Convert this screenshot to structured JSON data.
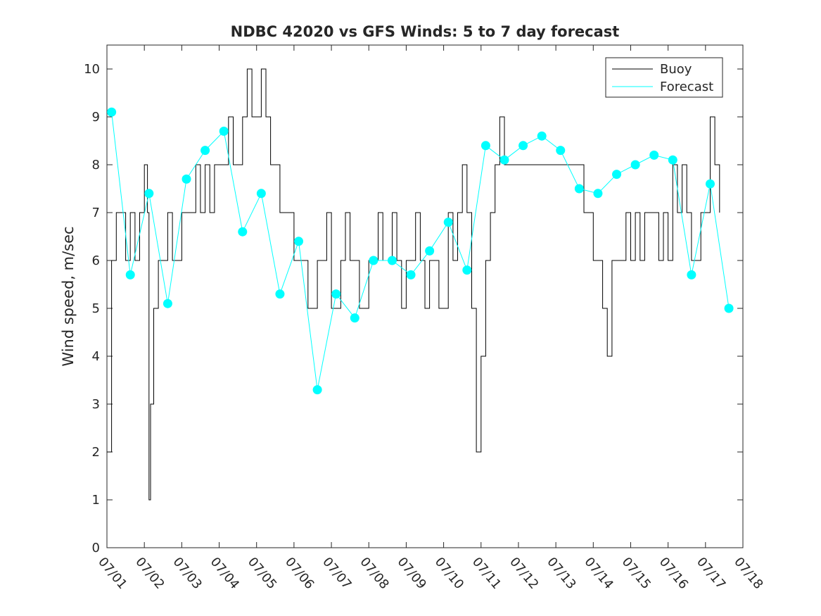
{
  "chart_data": {
    "type": "line",
    "title": "NDBC 42020 vs GFS Winds: 5 to 7 day forecast",
    "xlabel": "",
    "ylabel": "Wind speed, m/sec",
    "xlim": [
      "07/01",
      "07/18"
    ],
    "ylim": [
      0,
      10.5
    ],
    "x_ticks": [
      "07/01",
      "07/02",
      "07/03",
      "07/04",
      "07/05",
      "07/06",
      "07/07",
      "07/08",
      "07/09",
      "07/10",
      "07/11",
      "07/12",
      "07/13",
      "07/14",
      "07/15",
      "07/16",
      "07/17",
      "07/18"
    ],
    "y_ticks": [
      0,
      1,
      2,
      3,
      4,
      5,
      6,
      7,
      8,
      9,
      10
    ],
    "grid": false,
    "legend": {
      "placement": "top-right",
      "entries": [
        "Buoy",
        "Forecast"
      ]
    },
    "colors": {
      "buoy": "#000000",
      "forecast": "#00ffff",
      "axis": "#262626"
    },
    "series": [
      {
        "name": "Buoy",
        "x": [
          "07/01 00:00",
          "07/01 03:00",
          "07/01 06:00",
          "07/01 09:00",
          "07/01 12:00",
          "07/01 15:00",
          "07/01 18:00",
          "07/01 21:00",
          "07/02 00:00",
          "07/02 02:00",
          "07/02 03:00",
          "07/02 04:00",
          "07/02 06:00",
          "07/02 09:00",
          "07/02 12:00",
          "07/02 15:00",
          "07/02 18:00",
          "07/02 21:00",
          "07/03 00:00",
          "07/03 03:00",
          "07/03 06:00",
          "07/03 09:00",
          "07/03 12:00",
          "07/03 15:00",
          "07/03 18:00",
          "07/03 21:00",
          "07/04 00:00",
          "07/04 03:00",
          "07/04 06:00",
          "07/04 09:00",
          "07/04 12:00",
          "07/04 15:00",
          "07/04 18:00",
          "07/04 21:00",
          "07/05 00:00",
          "07/05 03:00",
          "07/05 06:00",
          "07/05 09:00",
          "07/05 12:00",
          "07/05 15:00",
          "07/05 18:00",
          "07/05 21:00",
          "07/06 00:00",
          "07/06 03:00",
          "07/06 06:00",
          "07/06 09:00",
          "07/06 12:00",
          "07/06 15:00",
          "07/06 18:00",
          "07/06 21:00",
          "07/07 00:00",
          "07/07 03:00",
          "07/07 06:00",
          "07/07 09:00",
          "07/07 12:00",
          "07/07 15:00",
          "07/07 18:00",
          "07/07 21:00",
          "07/08 00:00",
          "07/08 03:00",
          "07/08 06:00",
          "07/08 09:00",
          "07/08 12:00",
          "07/08 15:00",
          "07/08 18:00",
          "07/08 21:00",
          "07/09 00:00",
          "07/09 03:00",
          "07/09 06:00",
          "07/09 09:00",
          "07/09 12:00",
          "07/09 15:00",
          "07/09 18:00",
          "07/09 21:00",
          "07/10 00:00",
          "07/10 03:00",
          "07/10 06:00",
          "07/10 09:00",
          "07/10 12:00",
          "07/10 15:00",
          "07/10 18:00",
          "07/10 21:00",
          "07/11 00:00",
          "07/11 03:00",
          "07/11 06:00",
          "07/11 09:00",
          "07/11 12:00",
          "07/11 15:00",
          "07/13 18:00",
          "07/13 21:00",
          "07/14 00:00",
          "07/14 03:00",
          "07/14 06:00",
          "07/14 09:00",
          "07/14 12:00",
          "07/14 15:00",
          "07/14 18:00",
          "07/14 21:00",
          "07/15 00:00",
          "07/15 03:00",
          "07/15 06:00",
          "07/15 09:00",
          "07/15 12:00",
          "07/15 15:00",
          "07/15 18:00",
          "07/15 21:00",
          "07/16 00:00",
          "07/16 03:00",
          "07/16 06:00",
          "07/16 09:00",
          "07/16 12:00",
          "07/16 15:00",
          "07/16 18:00",
          "07/16 21:00",
          "07/17 00:00",
          "07/17 03:00",
          "07/17 06:00",
          "07/17 09:00"
        ],
        "values": [
          2,
          6,
          7,
          7,
          6,
          7,
          6,
          7,
          8,
          7,
          1,
          3,
          5,
          6,
          6,
          7,
          6,
          6,
          7,
          7,
          7,
          8,
          7,
          8,
          7,
          8,
          8,
          8,
          9,
          8,
          8,
          9,
          10,
          9,
          9,
          10,
          9,
          8,
          8,
          7,
          7,
          7,
          6,
          6,
          6,
          5,
          5,
          6,
          6,
          7,
          5,
          5,
          6,
          7,
          6,
          6,
          5,
          5,
          6,
          6,
          7,
          6,
          6,
          7,
          6,
          5,
          6,
          6,
          7,
          6,
          5,
          6,
          6,
          5,
          5,
          7,
          6,
          7,
          8,
          7,
          5,
          2,
          4,
          6,
          7,
          8,
          9,
          8,
          7,
          7,
          6,
          6,
          5,
          4,
          6,
          6,
          6,
          7,
          6,
          7,
          6,
          7,
          7,
          7,
          6,
          7,
          6,
          8,
          7,
          8,
          7,
          6,
          6,
          7,
          7,
          9,
          8,
          7
        ]
      },
      {
        "name": "Forecast",
        "x": [
          "07/01 03:00",
          "07/01 15:00",
          "07/02 03:00",
          "07/02 15:00",
          "07/03 03:00",
          "07/03 15:00",
          "07/04 03:00",
          "07/04 15:00",
          "07/05 03:00",
          "07/05 15:00",
          "07/06 03:00",
          "07/06 15:00",
          "07/07 03:00",
          "07/07 15:00",
          "07/08 03:00",
          "07/08 15:00",
          "07/09 03:00",
          "07/09 15:00",
          "07/10 03:00",
          "07/10 15:00",
          "07/11 03:00",
          "07/11 15:00",
          "07/12 03:00",
          "07/12 15:00",
          "07/13 03:00",
          "07/13 15:00",
          "07/14 03:00",
          "07/14 15:00",
          "07/15 03:00",
          "07/15 15:00",
          "07/16 03:00",
          "07/16 15:00",
          "07/17 03:00",
          "07/17 15:00"
        ],
        "values": [
          9.1,
          5.7,
          7.4,
          5.1,
          7.7,
          8.3,
          8.7,
          6.6,
          7.4,
          5.3,
          6.4,
          3.3,
          5.3,
          4.8,
          6.0,
          6.0,
          5.7,
          6.2,
          6.8,
          5.8,
          8.4,
          8.1,
          8.4,
          8.6,
          8.3,
          7.5,
          7.4,
          7.8,
          8.0,
          8.2,
          8.1,
          5.7,
          7.6,
          5.0
        ]
      }
    ]
  }
}
